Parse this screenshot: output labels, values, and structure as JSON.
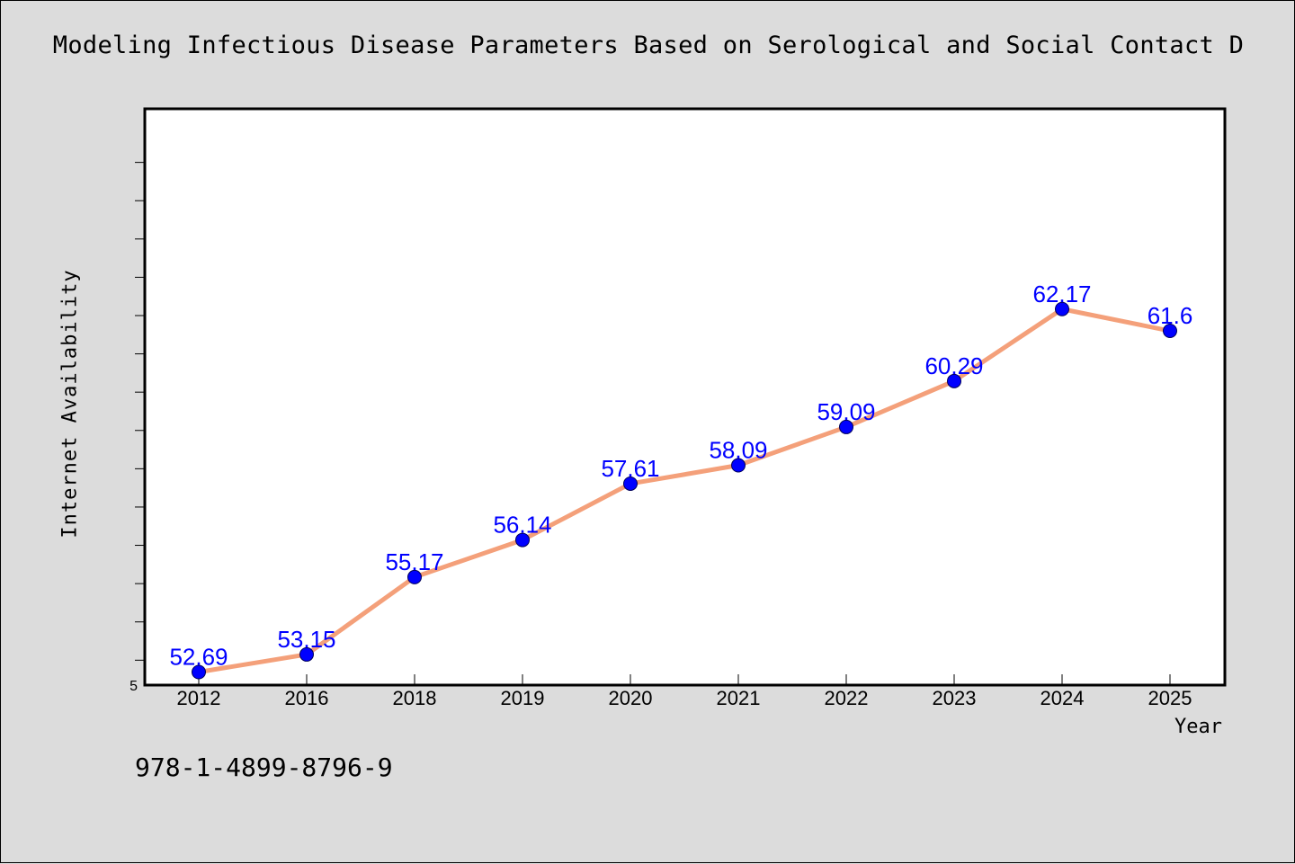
{
  "title": "Modeling Infectious Disease Parameters Based on Serological and Social Contact D",
  "footer_text": "978-1-4899-8796-9",
  "colors": {
    "line": "#f4a07a",
    "marker": "#0000ff",
    "label": "#0000ff",
    "background": "#dcdcdc",
    "plot_background": "#ffffff"
  },
  "chart_data": {
    "type": "line",
    "title": "Modeling Infectious Disease Parameters Based on Serological and Social Contact D",
    "xlabel": "Year",
    "ylabel": "Internet Availability",
    "categories": [
      "2012",
      "2016",
      "2018",
      "2019",
      "2020",
      "2021",
      "2022",
      "2023",
      "2024",
      "2025"
    ],
    "series": [
      {
        "values": [
          52.69,
          53.15,
          55.17,
          56.14,
          57.61,
          58.09,
          59.09,
          60.29,
          62.17,
          61.6
        ]
      }
    ],
    "data_labels": [
      "52.69",
      "53.15",
      "55.17",
      "56.14",
      "57.61",
      "58.09",
      "59.09",
      "60.29",
      "62.17",
      "61.6"
    ],
    "yticklabels_visible": [
      "5"
    ],
    "ylim": [
      52.35,
      67.4
    ],
    "y_minor_step": 1,
    "grid": false,
    "legend": "none"
  }
}
